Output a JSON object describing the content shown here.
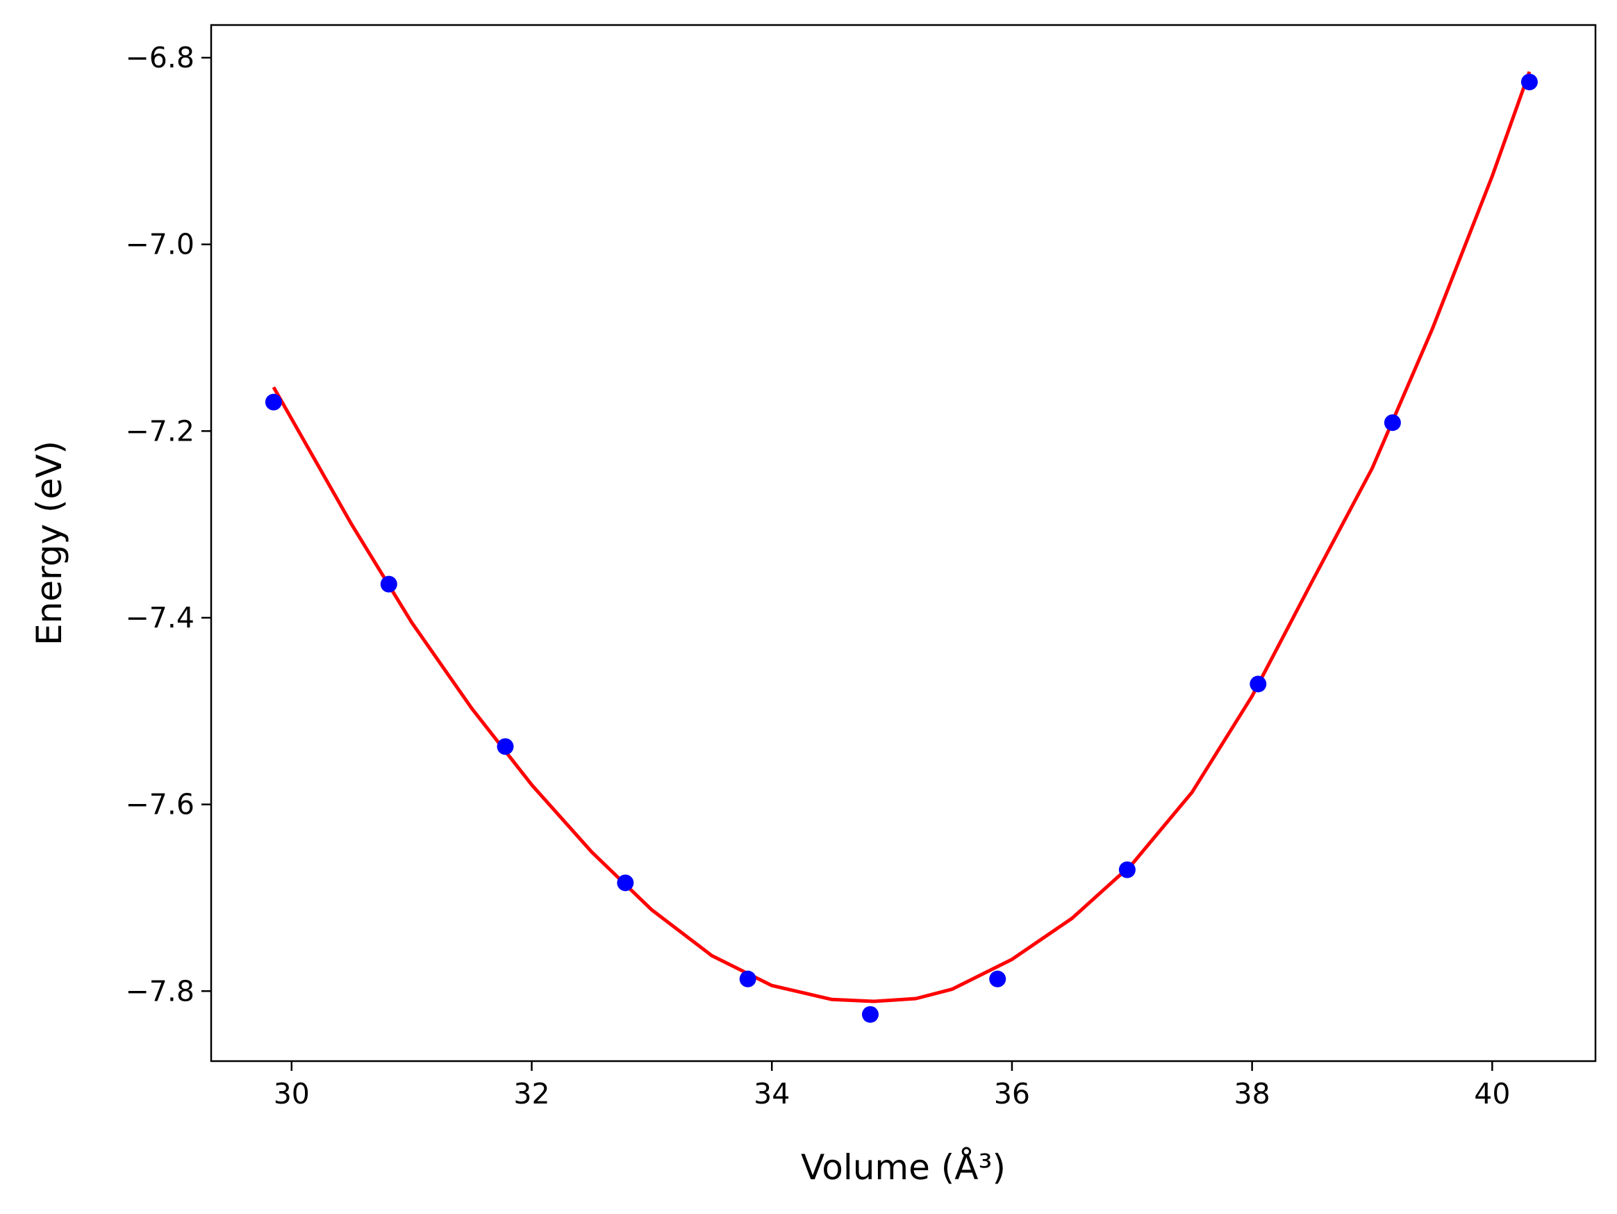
{
  "chart_data": {
    "type": "scatter",
    "xlabel": "Volume (Å³)",
    "ylabel": "Energy (eV)",
    "xlim": [
      29.33,
      40.86
    ],
    "ylim": [
      -7.875,
      -6.765
    ],
    "xticks": [
      30,
      32,
      34,
      36,
      38,
      40
    ],
    "yticks": [
      -7.8,
      -7.6,
      -7.4,
      -7.2,
      -7.0,
      -6.8
    ],
    "x_tick_labels": [
      "30",
      "32",
      "34",
      "36",
      "38",
      "40"
    ],
    "y_tick_labels": [
      "−7.8",
      "−7.6",
      "−7.4",
      "−7.2",
      "−7.0",
      "−6.8"
    ],
    "grid": false,
    "legend": "none",
    "series": [
      {
        "kind": "markers",
        "color": "#0000ff",
        "points": [
          [
            29.85,
            -7.169
          ],
          [
            30.81,
            -7.364
          ],
          [
            31.78,
            -7.538
          ],
          [
            32.78,
            -7.684
          ],
          [
            33.8,
            -7.787
          ],
          [
            34.82,
            -7.825
          ],
          [
            35.88,
            -7.787
          ],
          [
            36.96,
            -7.67
          ],
          [
            38.05,
            -7.471
          ],
          [
            39.17,
            -7.191
          ],
          [
            40.31,
            -6.826
          ]
        ]
      },
      {
        "kind": "fit-line",
        "color": "#ff0000",
        "points": [
          [
            29.85,
            -7.153
          ],
          [
            30.5,
            -7.3
          ],
          [
            31.0,
            -7.405
          ],
          [
            31.5,
            -7.497
          ],
          [
            32.0,
            -7.579
          ],
          [
            32.5,
            -7.651
          ],
          [
            33.0,
            -7.713
          ],
          [
            33.5,
            -7.762
          ],
          [
            34.0,
            -7.794
          ],
          [
            34.5,
            -7.809
          ],
          [
            34.85,
            -7.811
          ],
          [
            35.2,
            -7.808
          ],
          [
            35.5,
            -7.798
          ],
          [
            36.0,
            -7.766
          ],
          [
            36.5,
            -7.722
          ],
          [
            37.0,
            -7.664
          ],
          [
            37.5,
            -7.587
          ],
          [
            38.0,
            -7.484
          ],
          [
            38.5,
            -7.361
          ],
          [
            39.0,
            -7.24
          ],
          [
            39.5,
            -7.091
          ],
          [
            40.0,
            -6.927
          ],
          [
            40.31,
            -6.815
          ]
        ]
      }
    ]
  }
}
